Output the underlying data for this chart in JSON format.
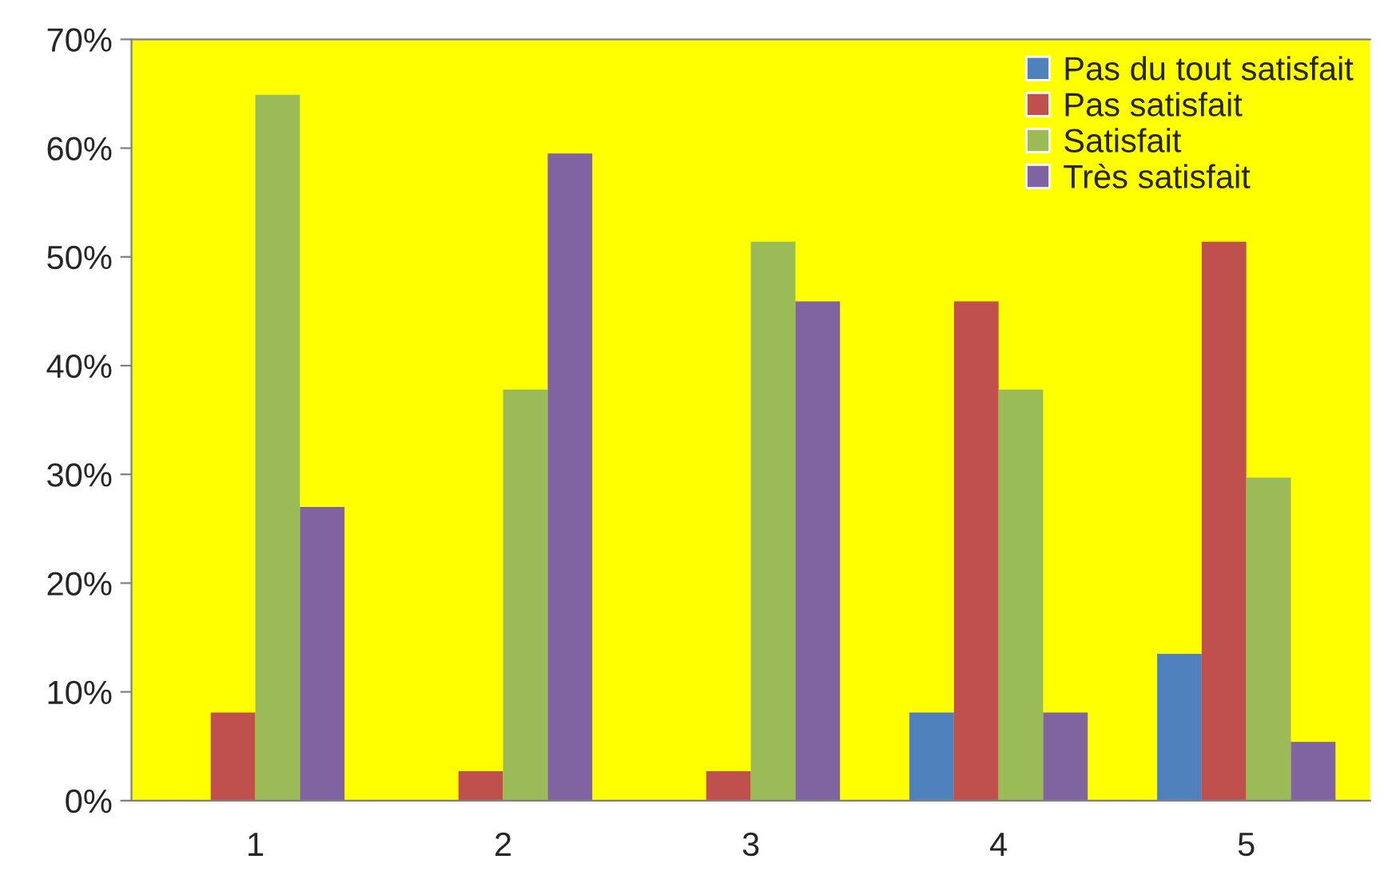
{
  "chart_data": {
    "type": "bar",
    "categories": [
      "1",
      "2",
      "3",
      "4",
      "5"
    ],
    "series": [
      {
        "name": "Pas du tout satisfait",
        "color": "#4f81bd",
        "values": [
          0,
          0,
          0,
          8.1,
          13.5
        ]
      },
      {
        "name": "Pas satisfait",
        "color": "#c0504d",
        "values": [
          8.1,
          2.7,
          2.7,
          45.9,
          51.4
        ]
      },
      {
        "name": "Satisfait",
        "color": "#9bbb59",
        "values": [
          64.9,
          37.8,
          51.4,
          37.8,
          29.7
        ]
      },
      {
        "name": "Très satisfait",
        "color": "#8064a2",
        "values": [
          27.0,
          59.5,
          45.9,
          8.1,
          5.4
        ]
      }
    ],
    "ylim": [
      0,
      70
    ],
    "yticks": [
      {
        "value": 0,
        "label": "0%"
      },
      {
        "value": 10,
        "label": "10%"
      },
      {
        "value": 20,
        "label": "20%"
      },
      {
        "value": 30,
        "label": "30%"
      },
      {
        "value": 40,
        "label": "40%"
      },
      {
        "value": 50,
        "label": "50%"
      },
      {
        "value": 60,
        "label": "60%"
      },
      {
        "value": 70,
        "label": "70%"
      }
    ],
    "grid": false,
    "legend": "top right"
  }
}
